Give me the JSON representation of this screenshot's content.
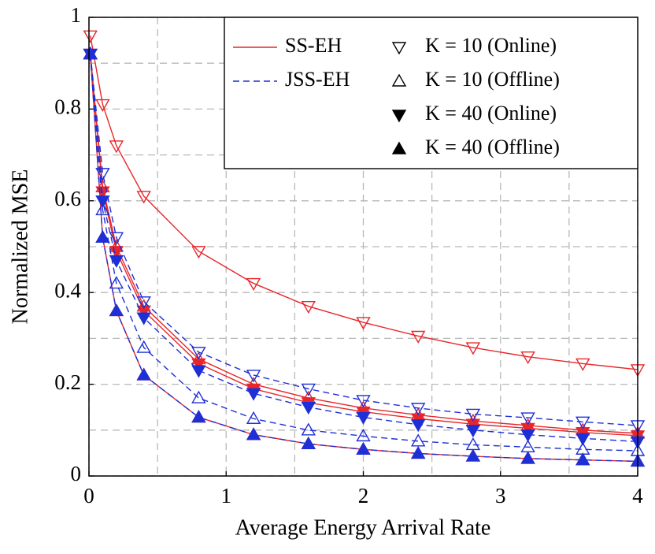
{
  "chart_data": {
    "type": "line",
    "xlabel": "Average Energy Arrival Rate",
    "ylabel": "Normalized MSE",
    "xlim": [
      0,
      4
    ],
    "ylim": [
      0,
      1
    ],
    "xticks": [
      0,
      1,
      2,
      3,
      4
    ],
    "yticks": [
      0,
      0.2,
      0.4,
      0.6,
      0.8,
      1
    ],
    "xgrid": [
      0,
      0.5,
      1,
      1.5,
      2,
      2.5,
      3,
      3.5,
      4
    ],
    "ygrid": [
      0,
      0.1,
      0.2,
      0.3,
      0.4,
      0.5,
      0.6,
      0.7,
      0.8,
      0.9,
      1
    ],
    "x": [
      0.01,
      0.1,
      0.2,
      0.4,
      0.8,
      1.2,
      1.6,
      2,
      2.4,
      2.8,
      3.2,
      3.6,
      4
    ],
    "legend": {
      "lines": [
        {
          "name": "SS-EH",
          "color": "#e8262a",
          "dash": "solid"
        },
        {
          "name": "JSS-EH",
          "color": "#1f2fd6",
          "dash": "dashed"
        }
      ],
      "markers": [
        {
          "name": "K = 10 (Online)",
          "marker": "down-open"
        },
        {
          "name": "K = 10 (Offline)",
          "marker": "up-open"
        },
        {
          "name": "K = 40 (Online)",
          "marker": "down-filled"
        },
        {
          "name": "K = 40 (Offline)",
          "marker": "up-filled"
        }
      ]
    },
    "series": [
      {
        "color": "#e8262a",
        "dash": "solid",
        "marker": "down-open",
        "values": [
          0.96,
          0.81,
          0.72,
          0.61,
          0.49,
          0.42,
          0.37,
          0.335,
          0.305,
          0.28,
          0.26,
          0.245,
          0.232
        ]
      },
      {
        "color": "#e8262a",
        "dash": "solid",
        "marker": "up-open",
        "values": [
          0.92,
          0.63,
          0.5,
          0.37,
          0.255,
          0.2,
          0.17,
          0.148,
          0.133,
          0.12,
          0.11,
          0.1,
          0.093
        ]
      },
      {
        "color": "#e8262a",
        "dash": "solid",
        "marker": "down-filled",
        "values": [
          0.92,
          0.62,
          0.49,
          0.36,
          0.245,
          0.19,
          0.16,
          0.14,
          0.125,
          0.113,
          0.104,
          0.095,
          0.088
        ]
      },
      {
        "color": "#e8262a",
        "dash": "solid",
        "marker": "up-filled",
        "values": [
          0.92,
          0.52,
          0.36,
          0.22,
          0.128,
          0.09,
          0.07,
          0.058,
          0.049,
          0.043,
          0.038,
          0.035,
          0.032
        ]
      },
      {
        "color": "#1f2fd6",
        "dash": "dashed",
        "marker": "down-open",
        "values": [
          0.92,
          0.66,
          0.52,
          0.38,
          0.27,
          0.22,
          0.19,
          0.165,
          0.148,
          0.135,
          0.127,
          0.118,
          0.11
        ]
      },
      {
        "color": "#1f2fd6",
        "dash": "dashed",
        "marker": "up-open",
        "values": [
          0.92,
          0.58,
          0.42,
          0.28,
          0.17,
          0.125,
          0.1,
          0.087,
          0.076,
          0.068,
          0.063,
          0.058,
          0.055
        ]
      },
      {
        "color": "#1f2fd6",
        "dash": "dashed",
        "marker": "down-filled",
        "values": [
          0.92,
          0.6,
          0.47,
          0.345,
          0.23,
          0.18,
          0.15,
          0.128,
          0.112,
          0.1,
          0.09,
          0.082,
          0.075
        ]
      },
      {
        "color": "#1f2fd6",
        "dash": "dashed",
        "marker": "up-filled",
        "values": [
          0.92,
          0.52,
          0.36,
          0.22,
          0.128,
          0.09,
          0.07,
          0.058,
          0.049,
          0.043,
          0.038,
          0.035,
          0.032
        ]
      }
    ]
  }
}
